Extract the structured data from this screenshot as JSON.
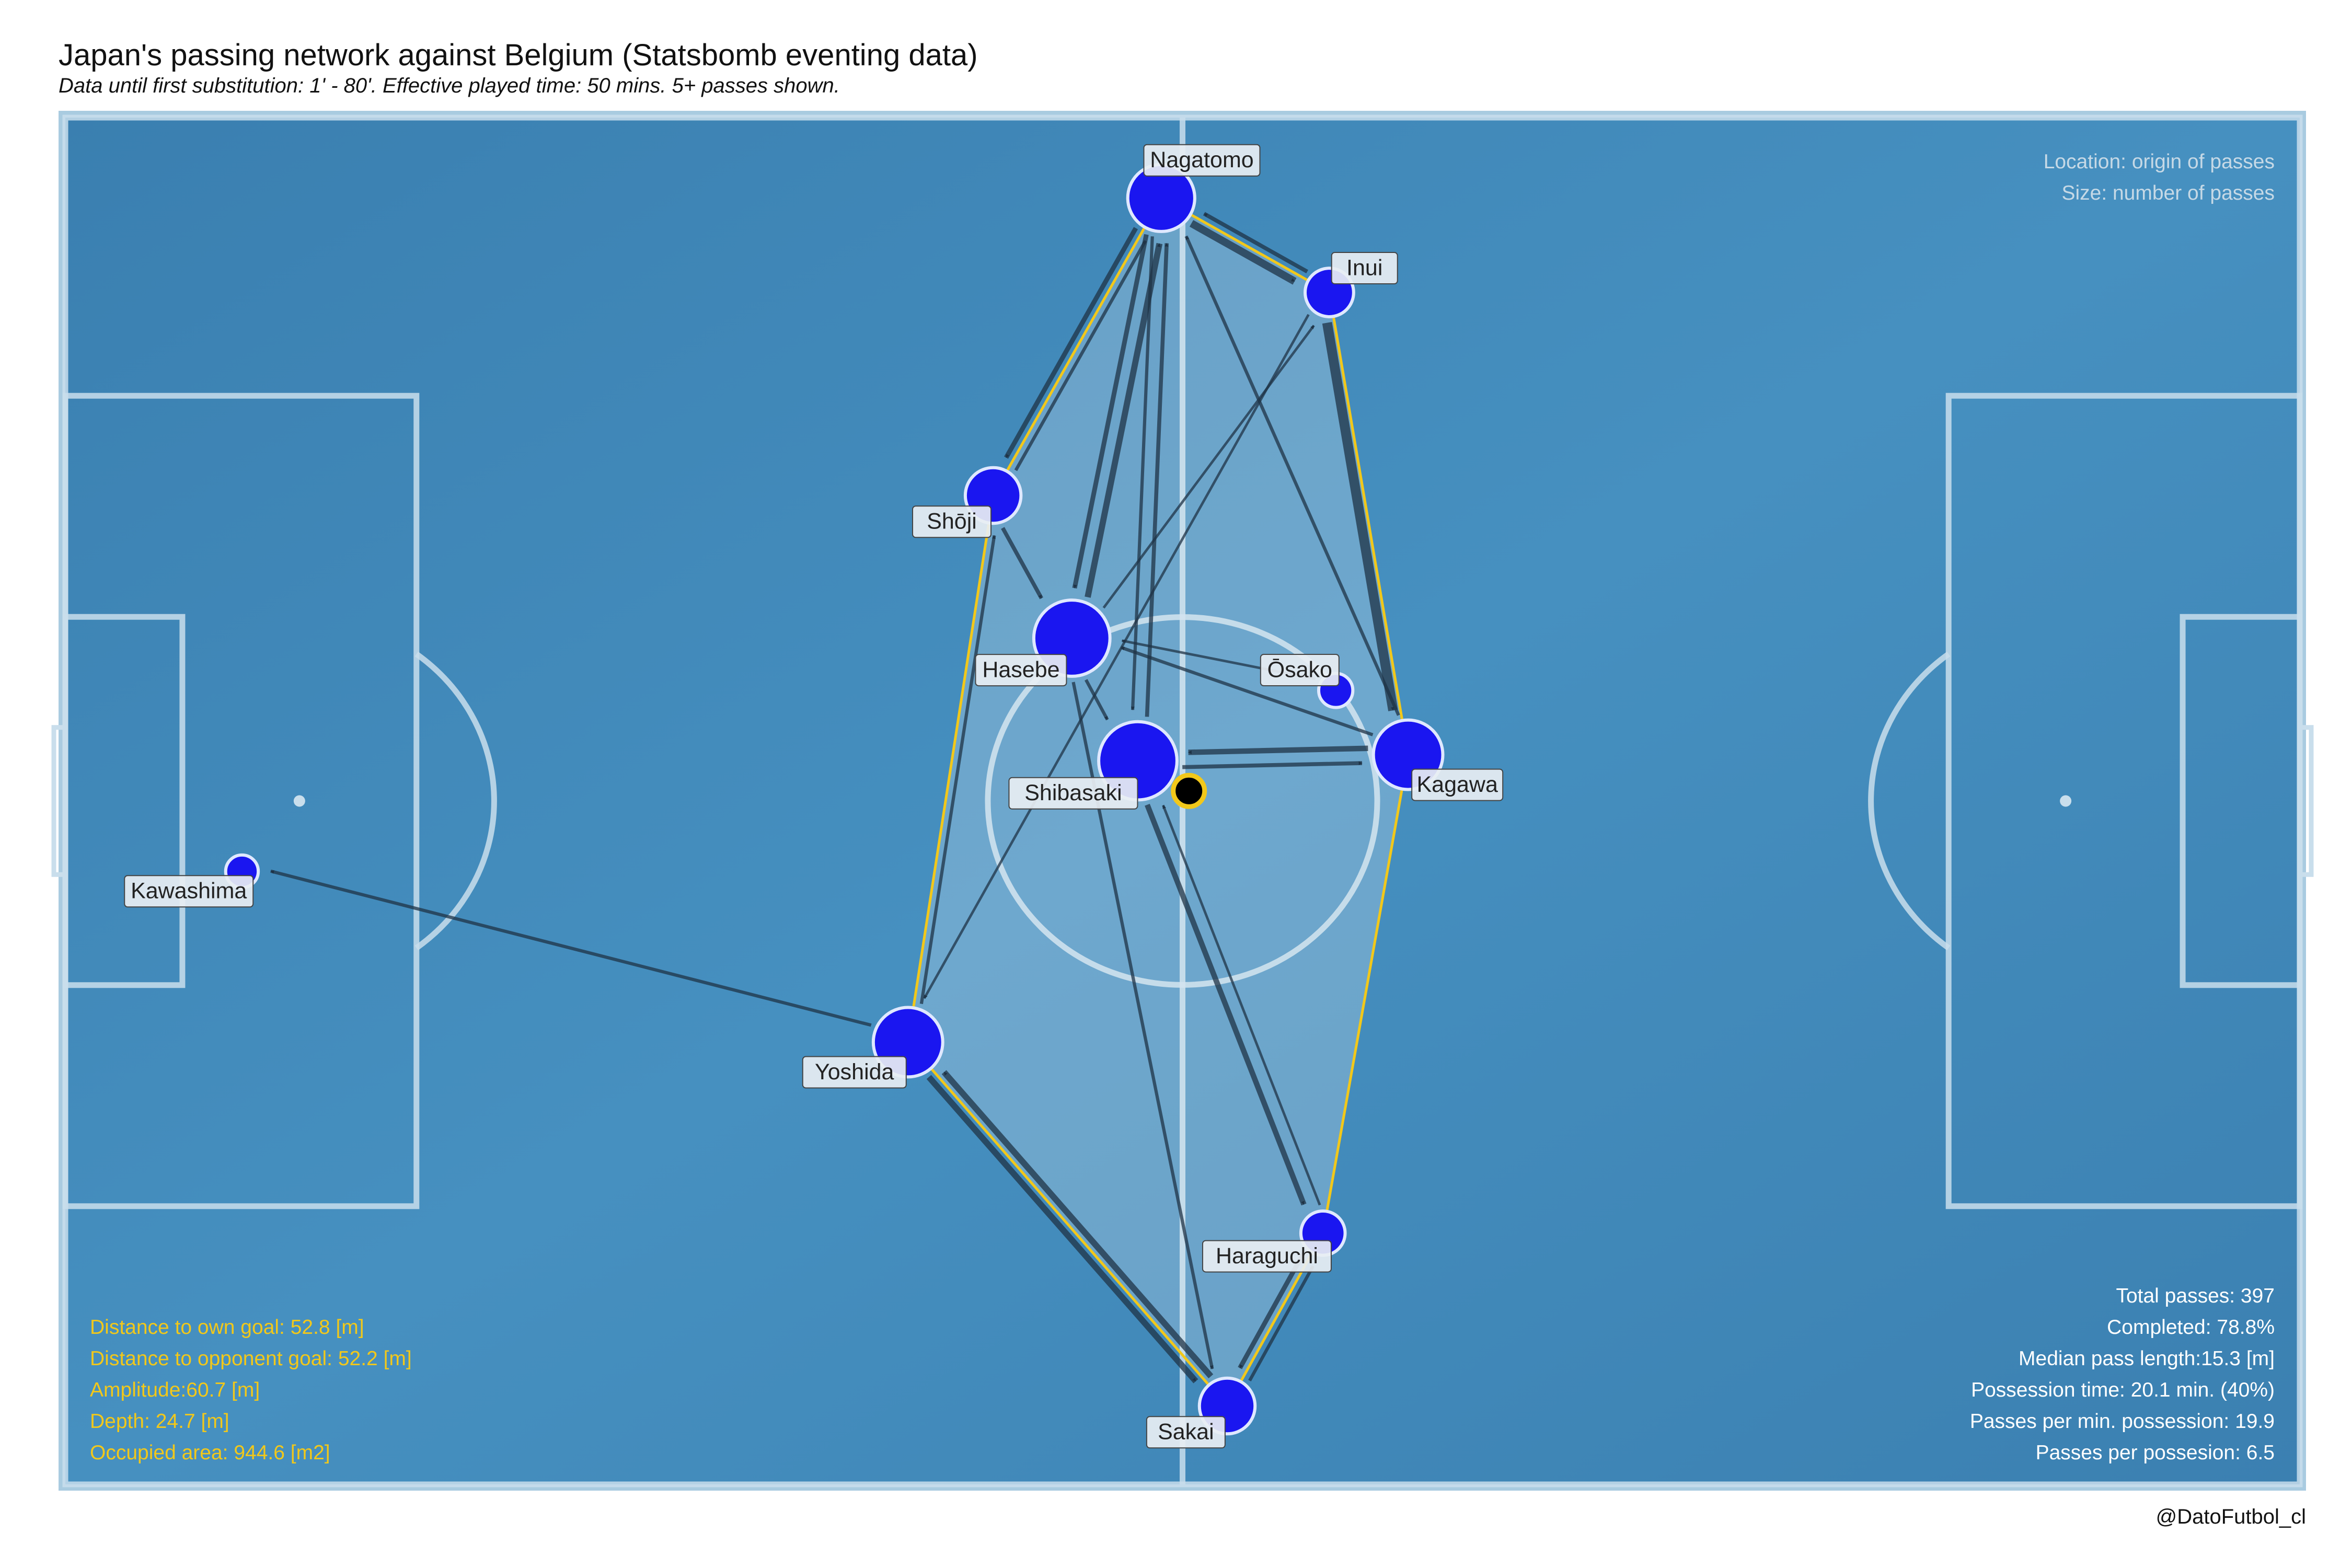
{
  "title": "Japan's passing network against Belgium (Statsbomb eventing data)",
  "subtitle": "Data until first substitution: 1' - 80'. Effective played time: 50 mins. 5+ passes shown.",
  "credit": "@DatoFutbol_cl",
  "legend": [
    "Location: origin of passes",
    "Size: number of passes"
  ],
  "stats_left": [
    "Distance to own goal: 52.8 [m]",
    "Distance to opponent goal: 52.2 [m]",
    "Amplitude:60.7 [m]",
    "Depth: 24.7 [m]",
    "Occupied area: 944.6 [m2]"
  ],
  "stats_right": [
    "Total passes: 397",
    "Completed: 78.8%",
    "Median pass length:15.3 [m]",
    "Possession time: 20.1 min. (40%)",
    "Passes per min. possession: 19.9",
    "Passes per possesion: 6.5"
  ],
  "colors": {
    "pitch": "#3f86b6",
    "lines": "#c9deec",
    "node": "#1a16f0",
    "hull": "#f2c81a",
    "arrow": "#1f3346"
  },
  "chart_data": {
    "type": "scatter",
    "pitch": {
      "length_m": 105,
      "width_m": 68,
      "attacking_direction": "right"
    },
    "hull_players": [
      "Nagatomo",
      "Inui",
      "Kagawa",
      "Haraguchi",
      "Sakai",
      "Yoshida",
      "Shōji"
    ],
    "team_centroid": {
      "x": 52.8,
      "y": 34.5
    },
    "players": [
      {
        "name": "Nagatomo",
        "x": 51.5,
        "y": 64.0,
        "passes": 50
      },
      {
        "name": "Inui",
        "x": 59.4,
        "y": 59.3,
        "passes": 20
      },
      {
        "name": "Shōji",
        "x": 43.6,
        "y": 49.2,
        "passes": 30
      },
      {
        "name": "Hasebe",
        "x": 47.3,
        "y": 42.1,
        "passes": 70
      },
      {
        "name": "Ōsako",
        "x": 59.7,
        "y": 39.5,
        "passes": 6
      },
      {
        "name": "Kagawa",
        "x": 63.1,
        "y": 36.3,
        "passes": 55
      },
      {
        "name": "Shibasaki",
        "x": 50.4,
        "y": 36.0,
        "passes": 75
      },
      {
        "name": "Kawashima",
        "x": 8.3,
        "y": 30.5,
        "passes": 5
      },
      {
        "name": "Yoshida",
        "x": 39.6,
        "y": 22.0,
        "passes": 55
      },
      {
        "name": "Haraguchi",
        "x": 59.1,
        "y": 12.5,
        "passes": 15
      },
      {
        "name": "Sakai",
        "x": 54.6,
        "y": 3.9,
        "passes": 30
      }
    ],
    "passes": [
      {
        "from": "Inui",
        "to": "Kagawa",
        "count": 12
      },
      {
        "from": "Nagatomo",
        "to": "Inui",
        "count": 9
      },
      {
        "from": "Inui",
        "to": "Nagatomo",
        "count": 4
      },
      {
        "from": "Hasebe",
        "to": "Nagatomo",
        "count": 7
      },
      {
        "from": "Nagatomo",
        "to": "Shōji",
        "count": 5
      },
      {
        "from": "Nagatomo",
        "to": "Hasebe",
        "count": 5
      },
      {
        "from": "Shōji",
        "to": "Hasebe",
        "count": 4
      },
      {
        "from": "Shibasaki",
        "to": "Nagatomo",
        "count": 4
      },
      {
        "from": "Nagatomo",
        "to": "Shibasaki",
        "count": 3
      },
      {
        "from": "Hasebe",
        "to": "Shibasaki",
        "count": 3
      },
      {
        "from": "Kagawa",
        "to": "Shibasaki",
        "count": 6
      },
      {
        "from": "Shibasaki",
        "to": "Kagawa",
        "count": 4
      },
      {
        "from": "Kagawa",
        "to": "Nagatomo",
        "count": 3
      },
      {
        "from": "Kagawa",
        "to": "Hasebe",
        "count": 3
      },
      {
        "from": "Hasebe",
        "to": "Inui",
        "count": 2
      },
      {
        "from": "Shibasaki",
        "to": "Haraguchi",
        "count": 6
      },
      {
        "from": "Hasebe",
        "to": "Sakai",
        "count": 3
      },
      {
        "from": "Sakai",
        "to": "Yoshida",
        "count": 7
      },
      {
        "from": "Yoshida",
        "to": "Sakai",
        "count": 7
      },
      {
        "from": "Yoshida",
        "to": "Shōji",
        "count": 3
      },
      {
        "from": "Yoshida",
        "to": "Kawashima",
        "count": 3
      },
      {
        "from": "Shōji",
        "to": "Nagatomo",
        "count": 3
      },
      {
        "from": "Sakai",
        "to": "Haraguchi",
        "count": 3
      },
      {
        "from": "Haraguchi",
        "to": "Sakai",
        "count": 5
      },
      {
        "from": "Haraguchi",
        "to": "Shibasaki",
        "count": 2
      },
      {
        "from": "Inui",
        "to": "Yoshida",
        "count": 2
      },
      {
        "from": "Ōsako",
        "to": "Hasebe",
        "count": 2
      }
    ]
  }
}
